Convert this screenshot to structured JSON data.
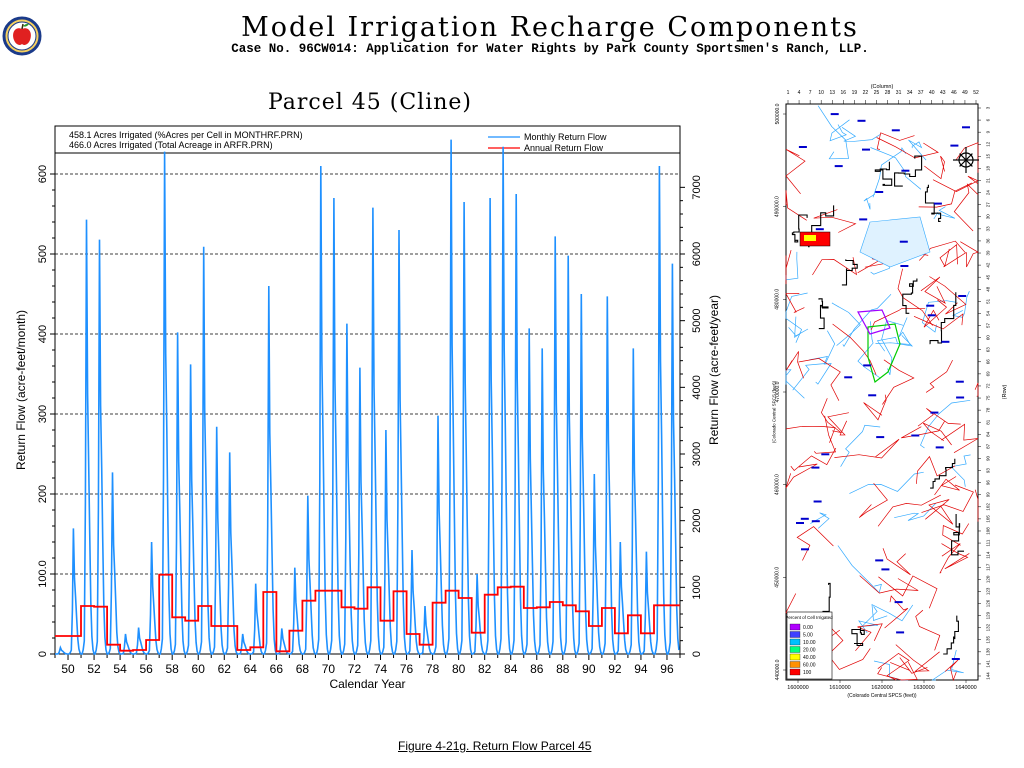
{
  "header": {
    "title": "Model Irrigation Recharge Components",
    "subtitle": "Case No. 96CW014: Application for Water Rights by Park County Sportsmen's Ranch, LLP."
  },
  "figure_caption": "Figure 4-21g.  Return Flow Parcel 45",
  "colors": {
    "monthly": "#1e90ff",
    "annual": "#ff0000",
    "logo_ring": "#e8a020",
    "logo_apple": "#e02020"
  },
  "icons": {
    "logo": "apple-logo-icon",
    "north_arrow": "compass-rose-icon"
  },
  "chart_data": {
    "type": "line",
    "title": "Parcel 45 (Cline)",
    "notes": [
      "458.1 Acres Irrigated (%Acres per Cell in MONTHRF.PRN)",
      "466.0 Acres Irrigated (Total Acreage in ARFR.PRN)"
    ],
    "xlabel": "Calendar Year",
    "ylabel": "Return Flow (acre-feet/month)",
    "y2label": "Return Flow (acre-feet/year)",
    "xlim": [
      1949,
      1997
    ],
    "ylim": [
      0,
      660
    ],
    "y2lim": [
      0,
      7920
    ],
    "x_ticks": [
      "50",
      "52",
      "54",
      "56",
      "58",
      "60",
      "62",
      "64",
      "66",
      "68",
      "70",
      "72",
      "74",
      "76",
      "78",
      "80",
      "82",
      "84",
      "86",
      "88",
      "90",
      "92",
      "94",
      "96"
    ],
    "y_ticks": [
      "0",
      "100.0",
      "200",
      "300",
      "400",
      "500",
      "600"
    ],
    "y2_ticks": [
      "0",
      "1000",
      "2000",
      "3000",
      "4000",
      "5000",
      "6000",
      "7000"
    ],
    "series": [
      {
        "name": "Monthly Return Flow",
        "axis": "left",
        "years": [
          1949,
          1950,
          1951,
          1952,
          1953,
          1954,
          1955,
          1956,
          1957,
          1958,
          1959,
          1960,
          1961,
          1962,
          1963,
          1964,
          1965,
          1966,
          1967,
          1968,
          1969,
          1970,
          1971,
          1972,
          1973,
          1974,
          1975,
          1976,
          1977,
          1978,
          1979,
          1980,
          1981,
          1982,
          1983,
          1984,
          1985,
          1986,
          1987,
          1988,
          1989,
          1990,
          1991,
          1992,
          1993,
          1994,
          1995,
          1996
        ],
        "annual_peak": [
          8,
          157,
          543,
          518,
          227,
          25,
          33,
          140,
          628,
          402,
          362,
          509,
          284,
          252,
          25,
          88,
          460,
          32,
          108,
          198,
          610,
          570,
          413,
          358,
          558,
          280,
          530,
          130,
          60,
          298,
          643,
          565,
          100,
          570,
          634,
          575,
          407,
          382,
          522,
          498,
          450,
          225,
          447,
          140,
          382,
          128,
          610,
          488
        ]
      },
      {
        "name": "Annual Return Flow",
        "axis": "right",
        "years": [
          1949,
          1950,
          1951,
          1952,
          1953,
          1954,
          1955,
          1956,
          1957,
          1958,
          1959,
          1960,
          1961,
          1962,
          1963,
          1964,
          1965,
          1966,
          1967,
          1968,
          1969,
          1970,
          1971,
          1972,
          1973,
          1974,
          1975,
          1976,
          1977,
          1978,
          1979,
          1980,
          1981,
          1982,
          1983,
          1984,
          1985,
          1986,
          1987,
          1988,
          1989,
          1990,
          1991,
          1992,
          1993,
          1994,
          1995,
          1996
        ],
        "values": [
          270,
          270,
          720,
          710,
          140,
          50,
          60,
          210,
          1190,
          550,
          500,
          720,
          420,
          420,
          60,
          100,
          930,
          40,
          350,
          800,
          950,
          950,
          700,
          680,
          1000,
          500,
          940,
          300,
          140,
          770,
          950,
          840,
          320,
          890,
          1000,
          1010,
          690,
          700,
          780,
          730,
          640,
          420,
          690,
          310,
          580,
          310,
          730,
          730
        ]
      }
    ],
    "legend_position": "top-right",
    "gridlines": "y-dashed"
  },
  "map": {
    "column_label": "(Column)",
    "row_label": "(Row)",
    "col_ticks": [
      "1",
      "4",
      "7",
      "10",
      "13",
      "16",
      "19",
      "22",
      "25",
      "28",
      "31",
      "34",
      "37",
      "40",
      "43",
      "46",
      "49",
      "52"
    ],
    "row_ticks": [
      "3",
      "6",
      "9",
      "12",
      "15",
      "18",
      "21",
      "24",
      "27",
      "30",
      "33",
      "36",
      "39",
      "42",
      "45",
      "48",
      "51",
      "54",
      "57",
      "60",
      "63",
      "66",
      "69",
      "72",
      "75",
      "78",
      "81",
      "84",
      "87",
      "90",
      "93",
      "96",
      "99",
      "102",
      "105",
      "108",
      "111",
      "114",
      "117",
      "120",
      "123",
      "126",
      "129",
      "132",
      "135",
      "138",
      "141",
      "144"
    ],
    "x_ticks": [
      "1600000",
      "1610000",
      "1620000",
      "1630000",
      "1640000"
    ],
    "y_ticks": [
      "500000.0",
      "490000.0",
      "480000.0",
      "470000.0",
      "460000.0",
      "450000.0",
      "440000.0"
    ],
    "x_axis_label": "(Colorado Central SPCS (feet))",
    "y_axis_label": "(Colorado Central SPCS (feet))",
    "legend_title": "Percent of Cell Irrigated",
    "legend_items": [
      {
        "label": "0.00",
        "color": "#b000ff"
      },
      {
        "label": "5.00",
        "color": "#4040ff"
      },
      {
        "label": "10.00",
        "color": "#00c0ff"
      },
      {
        "label": "20.00",
        "color": "#00ff80"
      },
      {
        "label": "40.00",
        "color": "#ffff00"
      },
      {
        "label": "60.00",
        "color": "#ff9000"
      },
      {
        "label": "100",
        "color": "#ff0000"
      }
    ]
  }
}
